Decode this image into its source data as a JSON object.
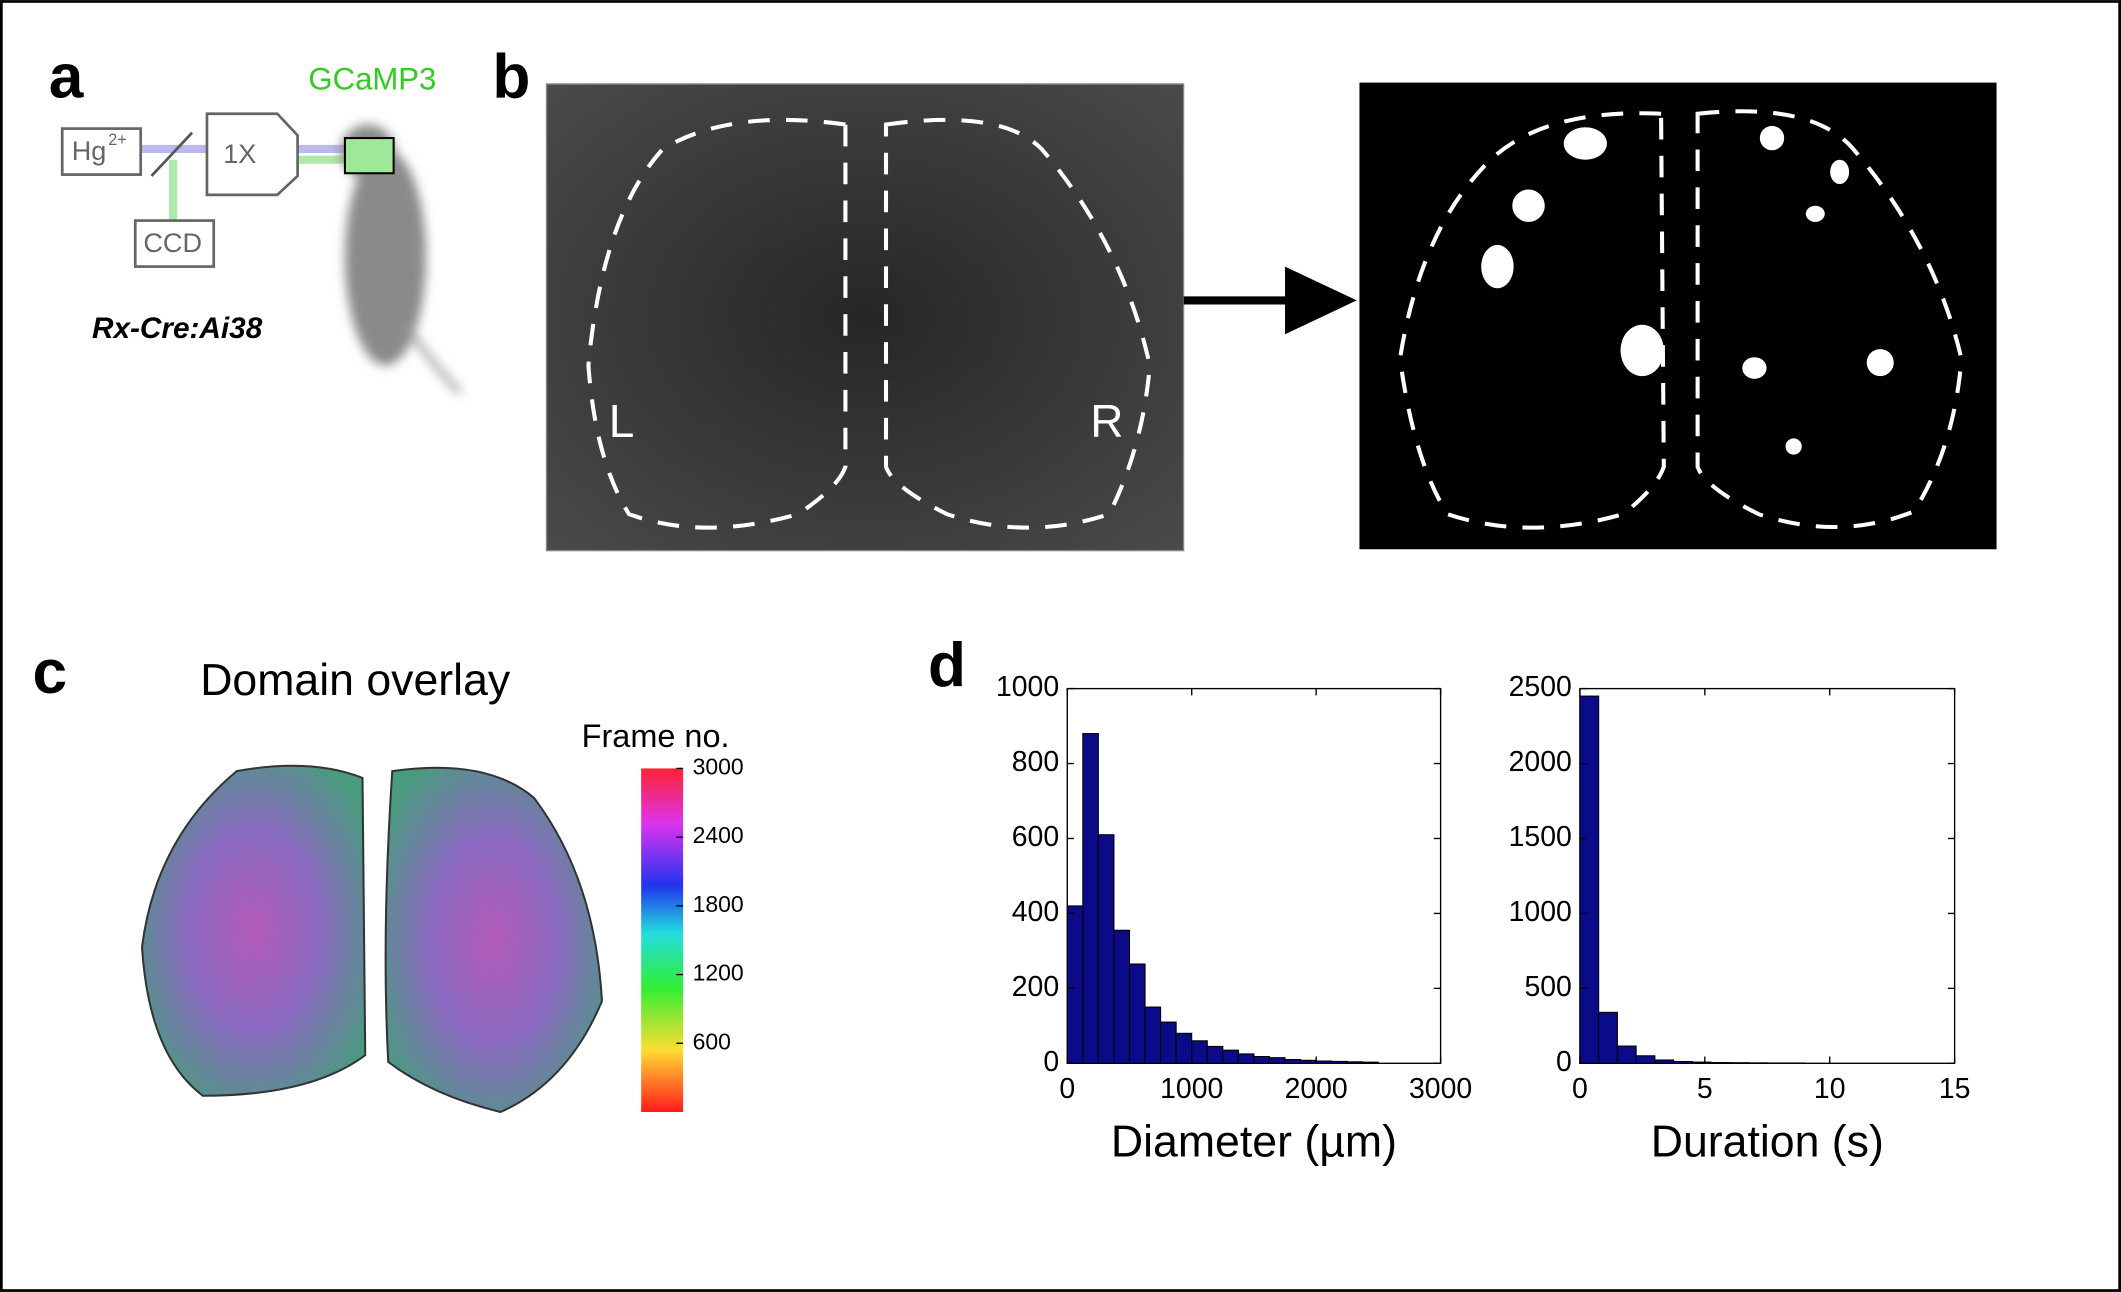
{
  "panel_a": {
    "label": "a",
    "light_source": "Hg",
    "light_source_charge": "2+",
    "objective": "1X",
    "camera": "CCD",
    "indicator": "GCaMP3",
    "mouse_line": "Rx-Cre:Ai38"
  },
  "panel_b": {
    "label": "b",
    "left_hemisphere": "L",
    "right_hemisphere": "R"
  },
  "panel_c": {
    "label": "c",
    "title": "Domain overlay",
    "colorbar": {
      "label": "Frame no.",
      "lim": [
        0,
        3000
      ],
      "ticks": [
        600,
        1200,
        1800,
        2400,
        3000
      ]
    }
  },
  "panel_d": {
    "label": "d"
  },
  "chart_data": [
    {
      "type": "histogram",
      "xlabel": "Diameter (µm)",
      "color": "#0b0b8a",
      "bins": [
        0,
        125,
        250,
        375,
        500,
        625,
        750,
        875,
        1000,
        1125,
        1250,
        1375,
        1500,
        1625,
        1750,
        1875,
        2000,
        2125,
        2250,
        2375,
        2500
      ],
      "values": [
        420,
        880,
        610,
        355,
        265,
        150,
        110,
        80,
        60,
        45,
        35,
        25,
        18,
        15,
        10,
        8,
        6,
        5,
        4,
        3
      ],
      "xlim": [
        0,
        3000
      ],
      "xticks": [
        0,
        1000,
        2000,
        3000
      ],
      "ylim": [
        0,
        1000
      ],
      "yticks": [
        0,
        200,
        400,
        600,
        800,
        1000
      ]
    },
    {
      "type": "histogram",
      "xlabel": "Duration (s)",
      "color": "#0b0b8a",
      "bins": [
        0,
        0.75,
        1.5,
        2.25,
        3,
        3.75,
        4.5,
        5.25,
        6,
        6.75,
        7.5,
        8.25,
        9
      ],
      "values": [
        2450,
        340,
        115,
        50,
        22,
        12,
        8,
        5,
        4,
        3,
        2,
        2
      ],
      "xlim": [
        0,
        15
      ],
      "xticks": [
        0,
        5,
        10,
        15
      ],
      "ylim": [
        0,
        2500
      ],
      "yticks": [
        0,
        500,
        1000,
        1500,
        2000,
        2500
      ]
    }
  ]
}
